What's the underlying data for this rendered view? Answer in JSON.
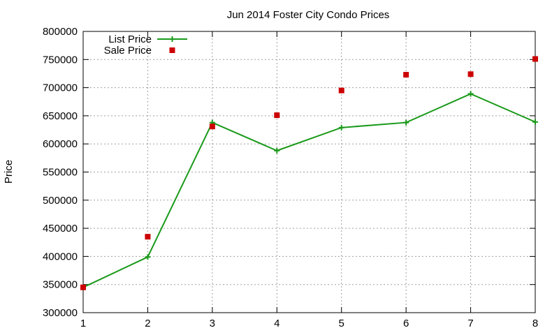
{
  "chart_data": {
    "type": "line",
    "title": "Jun 2014 Foster City Condo Prices",
    "xlabel": "",
    "ylabel": "Price",
    "x": [
      1,
      2,
      3,
      4,
      5,
      6,
      7,
      8
    ],
    "xlim": [
      1,
      8
    ],
    "ylim": [
      300000,
      800000
    ],
    "yticks": [
      300000,
      350000,
      400000,
      450000,
      500000,
      550000,
      600000,
      650000,
      700000,
      750000,
      800000
    ],
    "xticks": [
      1,
      2,
      3,
      4,
      5,
      6,
      7,
      8
    ],
    "grid": true,
    "legend_position": "top-left",
    "series": [
      {
        "name": "List Price",
        "style": "line-with-plus-markers",
        "color": "#1a9a1a",
        "values": [
          345000,
          399000,
          638000,
          588000,
          629000,
          638000,
          689000,
          639000
        ]
      },
      {
        "name": "Sale Price",
        "style": "square-points",
        "color": "#cc0000",
        "values": [
          345000,
          435000,
          631000,
          651000,
          695000,
          723000,
          724000,
          751000
        ]
      }
    ]
  }
}
